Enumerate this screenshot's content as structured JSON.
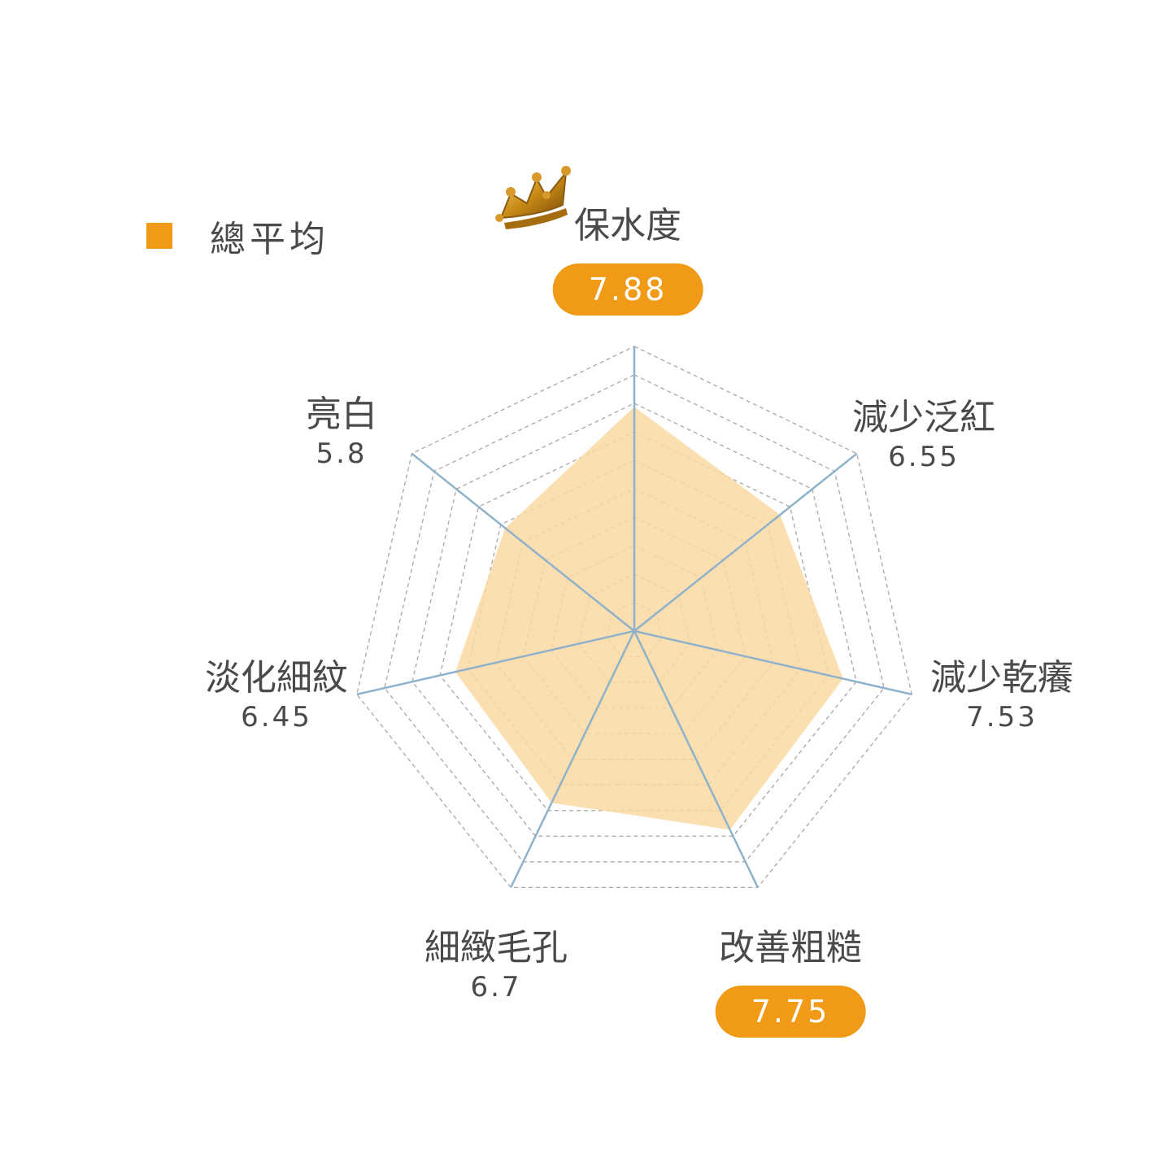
{
  "legend": {
    "label": "總平均",
    "icon": "square-icon",
    "color": "#f09a17"
  },
  "chart_data": {
    "type": "radar",
    "categories": [
      "保水度",
      "減少泛紅",
      "減少乾癢",
      "改善粗糙",
      "細緻毛孔",
      "淡化細紋",
      "亮白"
    ],
    "series": [
      {
        "name": "總平均",
        "values": [
          7.88,
          6.55,
          7.53,
          7.75,
          6.7,
          6.45,
          5.8
        ]
      }
    ],
    "value_labels": [
      "7.88",
      "6.55",
      "7.53",
      "7.75",
      "6.7",
      "6.45",
      "5.8"
    ],
    "highlighted": [
      "保水度",
      "改善粗糙"
    ],
    "range": [
      0,
      10
    ],
    "rings": 10,
    "grid": true,
    "fill_color": "#fad9a3",
    "highlight_color": "#f09a17",
    "spoke_color": "#8fb2cb",
    "grid_color": "#a7a7a7"
  },
  "icons": {
    "crown": "crown-icon"
  }
}
